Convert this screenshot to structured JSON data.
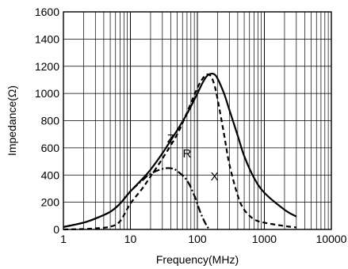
{
  "chart_data": {
    "type": "line",
    "title": "",
    "xlabel": "Frequency(MHz)",
    "ylabel": "Impedance(Ω)",
    "x_scale": "log",
    "xlim": [
      1,
      10000
    ],
    "ylim": [
      0,
      1600
    ],
    "x_ticks": [
      1,
      10,
      100,
      1000,
      10000
    ],
    "x_tick_labels": [
      "1",
      "10",
      "100",
      "1000",
      "10000"
    ],
    "y_ticks": [
      0,
      200,
      400,
      600,
      800,
      1000,
      1200,
      1400,
      1600
    ],
    "y_tick_labels": [
      "0",
      "200",
      "400",
      "600",
      "800",
      "1000",
      "1200",
      "1400",
      "1600"
    ],
    "grid": true,
    "series": [
      {
        "name": "Z",
        "line_style": "solid",
        "x": [
          1,
          2,
          3,
          5,
          7,
          10,
          15,
          20,
          30,
          50,
          70,
          100,
          120,
          140,
          160,
          180,
          200,
          250,
          300,
          400,
          500,
          700,
          1000,
          2000,
          3000
        ],
        "y": [
          18,
          50,
          80,
          130,
          190,
          280,
          370,
          440,
          560,
          730,
          850,
          1000,
          1080,
          1130,
          1145,
          1140,
          1110,
          1000,
          880,
          690,
          540,
          380,
          270,
          145,
          95
        ]
      },
      {
        "name": "R",
        "line_style": "dashed",
        "x": [
          1,
          2,
          3,
          5,
          7,
          10,
          15,
          20,
          30,
          50,
          70,
          100,
          120,
          140,
          160,
          180,
          200,
          250,
          300,
          400,
          500,
          700,
          1000,
          2000,
          3000
        ],
        "y": [
          0,
          3,
          8,
          20,
          60,
          190,
          300,
          390,
          520,
          700,
          860,
          1040,
          1110,
          1140,
          1125,
          1060,
          960,
          700,
          480,
          250,
          145,
          75,
          50,
          25,
          15
        ]
      },
      {
        "name": "X",
        "line_style": "dashdot",
        "x": [
          1,
          2,
          3,
          5,
          7,
          10,
          15,
          20,
          30,
          40,
          50,
          70,
          90,
          110,
          130,
          150
        ],
        "y": [
          18,
          50,
          80,
          130,
          190,
          280,
          360,
          410,
          445,
          450,
          430,
          360,
          250,
          130,
          50,
          0
        ]
      }
    ],
    "annotations": [
      {
        "text": "Z",
        "x": 40,
        "y": 640
      },
      {
        "text": "R",
        "x": 70,
        "y": 530
      },
      {
        "text": "X",
        "x": 180,
        "y": 360
      }
    ]
  }
}
